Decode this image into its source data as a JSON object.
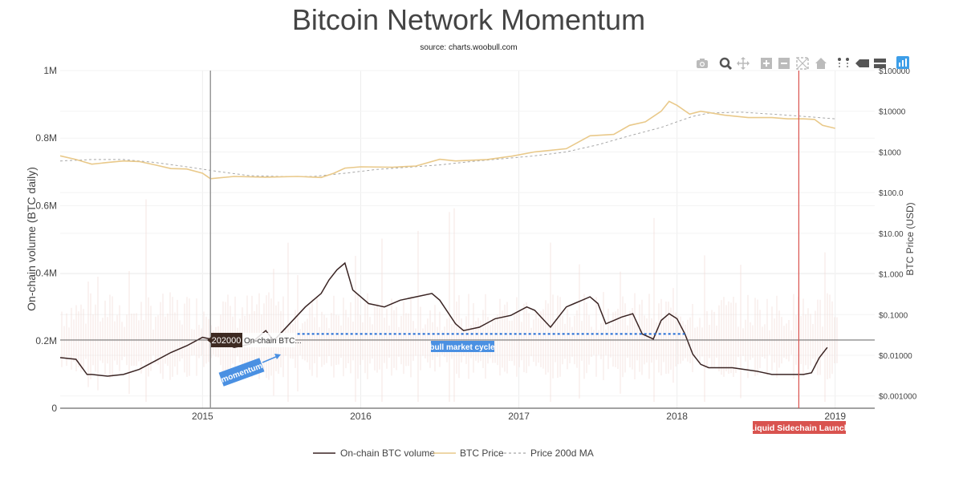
{
  "chart_data": {
    "type": "line",
    "title": "Bitcoin Network Momentum",
    "subtitle": "source: charts.woobull.com",
    "y_left_label": "On-chain volume (BTC daily)",
    "y_right_label": "BTC Price (USD)",
    "x_ticks": [
      "2015",
      "2016",
      "2017",
      "2018",
      "2019"
    ],
    "x_range": [
      2014.1,
      2019.25
    ],
    "y_left_ticks": [
      "0",
      "0.2M",
      "0.4M",
      "0.6M",
      "0.8M",
      "1M"
    ],
    "y_left_range": [
      0,
      1000000
    ],
    "y_right_ticks": [
      "$0.001000",
      "$0.01000",
      "$0.1000",
      "$1.000",
      "$10.00",
      "$100.0",
      "$1000",
      "$10000",
      "$100000"
    ],
    "y_right_scale": "log",
    "y_right_range": [
      0.0005,
      100000
    ],
    "legend": [
      "On-chain BTC volume",
      "BTC Price",
      "Price 200d MA"
    ],
    "legend_position": "bottom-center",
    "series": [
      {
        "name": "On-chain BTC volume",
        "axis": "left",
        "color": "#3a2423",
        "x": [
          2014.1,
          2014.2,
          2014.27,
          2014.3,
          2014.4,
          2014.5,
          2014.6,
          2014.7,
          2014.8,
          2014.9,
          2015.0,
          2015.1,
          2015.2,
          2015.3,
          2015.4,
          2015.45,
          2015.55,
          2015.65,
          2015.75,
          2015.8,
          2015.85,
          2015.9,
          2015.95,
          2016.0,
          2016.05,
          2016.15,
          2016.25,
          2016.35,
          2016.45,
          2016.5,
          2016.6,
          2016.65,
          2016.75,
          2016.85,
          2016.95,
          2017.05,
          2017.1,
          2017.2,
          2017.3,
          2017.35,
          2017.4,
          2017.45,
          2017.5,
          2017.55,
          2017.65,
          2017.72,
          2017.78,
          2017.85,
          2017.9,
          2017.95,
          2018.0,
          2018.05,
          2018.1,
          2018.15,
          2018.2,
          2018.35,
          2018.5,
          2018.6,
          2018.7,
          2018.8,
          2018.85,
          2018.9,
          2018.95
        ],
        "values": [
          150000,
          145000,
          100000,
          100000,
          95000,
          100000,
          115000,
          140000,
          165000,
          185000,
          210000,
          200000,
          180000,
          190000,
          230000,
          200000,
          250000,
          300000,
          340000,
          380000,
          410000,
          430000,
          350000,
          330000,
          310000,
          300000,
          320000,
          330000,
          340000,
          320000,
          250000,
          230000,
          240000,
          265000,
          275000,
          300000,
          290000,
          240000,
          300000,
          310000,
          320000,
          330000,
          310000,
          250000,
          270000,
          280000,
          220000,
          205000,
          260000,
          280000,
          265000,
          220000,
          160000,
          130000,
          120000,
          120000,
          110000,
          100000,
          100000,
          100000,
          105000,
          150000,
          180000
        ]
      },
      {
        "name": "BTC Price",
        "axis": "right",
        "color": "#e9c98a",
        "x": [
          2014.1,
          2014.2,
          2014.3,
          2014.4,
          2014.5,
          2014.6,
          2014.7,
          2014.8,
          2014.9,
          2015.0,
          2015.05,
          2015.2,
          2015.4,
          2015.6,
          2015.75,
          2015.83,
          2015.9,
          2016.0,
          2016.2,
          2016.35,
          2016.5,
          2016.6,
          2016.8,
          2016.95,
          2017.1,
          2017.3,
          2017.45,
          2017.6,
          2017.7,
          2017.8,
          2017.9,
          2017.95,
          2018.0,
          2018.08,
          2018.15,
          2018.3,
          2018.45,
          2018.6,
          2018.7,
          2018.8,
          2018.87,
          2018.92,
          2019.0
        ],
        "values": [
          800,
          650,
          500,
          550,
          600,
          580,
          480,
          390,
          380,
          300,
          220,
          250,
          240,
          250,
          235,
          300,
          400,
          430,
          420,
          450,
          660,
          600,
          650,
          780,
          1000,
          1200,
          2500,
          2700,
          4500,
          5500,
          10000,
          17500,
          14000,
          8500,
          10000,
          8000,
          7000,
          7000,
          6500,
          6500,
          6300,
          4500,
          3800
        ]
      },
      {
        "name": "Price 200d MA",
        "axis": "right",
        "color": "#a8a8a8",
        "dash": "dashed",
        "x": [
          2014.1,
          2014.3,
          2014.5,
          2014.7,
          2014.9,
          2015.1,
          2015.3,
          2015.5,
          2015.7,
          2015.9,
          2016.1,
          2016.3,
          2016.5,
          2016.7,
          2016.9,
          2017.1,
          2017.3,
          2017.5,
          2017.7,
          2017.9,
          2018.0,
          2018.1,
          2018.2,
          2018.4,
          2018.6,
          2018.8,
          2019.0
        ],
        "values": [
          600,
          650,
          650,
          550,
          430,
          330,
          260,
          250,
          250,
          300,
          370,
          420,
          480,
          580,
          680,
          800,
          1000,
          1500,
          2500,
          4000,
          5500,
          7500,
          9000,
          9500,
          8500,
          7500,
          6500
        ]
      }
    ],
    "hline_value": 202000,
    "hline_label": "202000",
    "hline_series_label": "On-chain BTC...",
    "vline_2015_x": 2015.05,
    "vline_liquid_x": 2018.77,
    "annotations": {
      "momentum": "momentum",
      "bull_market_cycle": "bull market cycle",
      "liquid_sidechain_launch": "Liquid Sidechain Launch"
    },
    "bull_cycle_range": [
      2015.6,
      2018.05
    ],
    "bull_cycle_value": 220000,
    "colors": {
      "volume": "#3a2423",
      "price": "#e9c98a",
      "ma": "#a8a8a8",
      "noise": "#f2d8d4",
      "bull_line": "#1f6bd6",
      "bull_label_bg": "#4a90e2",
      "momentum_bg": "#4a90e2",
      "liquid_line": "#d9534f",
      "liquid_label_bg": "#d9534f",
      "hover_bg": "#3d2a22",
      "vline_gray": "#999999"
    }
  },
  "toolbar": {
    "icons": [
      "camera-icon",
      "zoom-icon",
      "pan-icon",
      "zoom-in-icon",
      "zoom-out-icon",
      "autoscale-icon",
      "home-icon",
      "spike-lines-icon",
      "hover-closest-icon",
      "hover-compare-icon",
      "plotly-logo-icon"
    ]
  }
}
